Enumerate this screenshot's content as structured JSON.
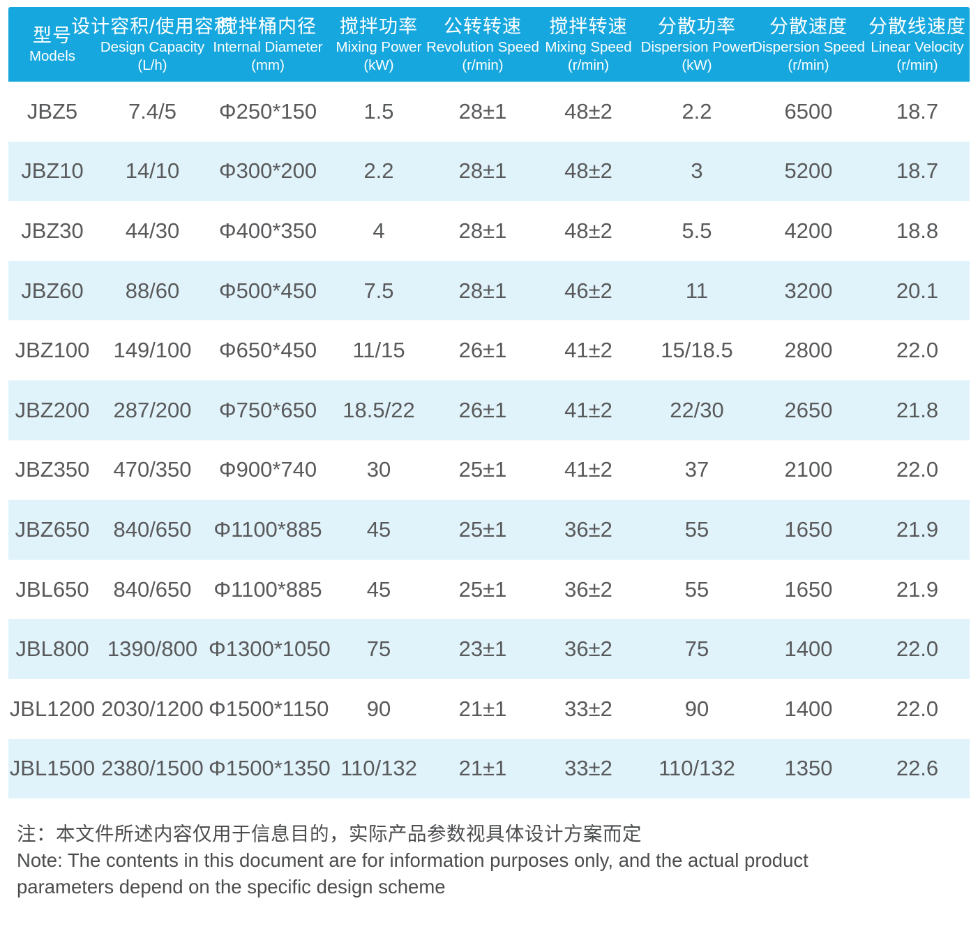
{
  "theme": {
    "header_bg": "#16A7DE",
    "header_text": "#FFFFFF",
    "stripe_bg": "#E1F3FA",
    "row_bg": "#FFFFFF",
    "cell_text": "#58595B",
    "note_text": "#4B4C4E"
  },
  "table": {
    "columns": [
      {
        "cn": "型号",
        "en": "Models",
        "unit": ""
      },
      {
        "cn": "设计容积/使用容积",
        "en": "Design Capacity",
        "unit": "(L/h)"
      },
      {
        "cn": "搅拌桶内径",
        "en": "Internal Diameter",
        "unit": "(mm)"
      },
      {
        "cn": "搅拌功率",
        "en": "Mixing Power",
        "unit": "(kW)"
      },
      {
        "cn": "公转转速",
        "en": "Revolution Speed",
        "unit": "(r/min)"
      },
      {
        "cn": "搅拌转速",
        "en": "Mixing Speed",
        "unit": "(r/min)"
      },
      {
        "cn": "分散功率",
        "en": "Dispersion Power",
        "unit": "(kW)"
      },
      {
        "cn": "分散速度",
        "en": "Dispersion Speed",
        "unit": "(r/min)"
      },
      {
        "cn": "分散线速度",
        "en": "Linear Velocity",
        "unit": "(r/min)"
      }
    ],
    "rows": [
      {
        "cells": [
          "JBZ5",
          "7.4/5",
          "Φ250*150",
          "1.5",
          "28±1",
          "48±2",
          "2.2",
          "6500",
          "18.7"
        ]
      },
      {
        "cells": [
          "JBZ10",
          "14/10",
          "Φ300*200",
          "2.2",
          "28±1",
          "48±2",
          "3",
          "5200",
          "18.7"
        ]
      },
      {
        "cells": [
          "JBZ30",
          "44/30",
          "Φ400*350",
          "4",
          "28±1",
          "48±2",
          "5.5",
          "4200",
          "18.8"
        ]
      },
      {
        "cells": [
          "JBZ60",
          "88/60",
          "Φ500*450",
          "7.5",
          "28±1",
          "46±2",
          "11",
          "3200",
          "20.1"
        ]
      },
      {
        "cells": [
          "JBZ100",
          "149/100",
          "Φ650*450",
          "11/15",
          "26±1",
          "41±2",
          "15/18.5",
          "2800",
          "22.0"
        ]
      },
      {
        "cells": [
          "JBZ200",
          "287/200",
          "Φ750*650",
          "18.5/22",
          "26±1",
          "41±2",
          "22/30",
          "2650",
          "21.8"
        ]
      },
      {
        "cells": [
          "JBZ350",
          "470/350",
          "Φ900*740",
          "30",
          "25±1",
          "41±2",
          "37",
          "2100",
          "22.0"
        ]
      },
      {
        "cells": [
          "JBZ650",
          "840/650",
          "Φ1100*885",
          "45",
          "25±1",
          "36±2",
          "55",
          "1650",
          "21.9"
        ]
      },
      {
        "cells": [
          "JBL650",
          "840/650",
          "Φ1100*885",
          "45",
          "25±1",
          "36±2",
          "55",
          "1650",
          "21.9"
        ]
      },
      {
        "cells": [
          "JBL800",
          "1390/800",
          "Φ1300*1050",
          "75",
          "23±1",
          "36±2",
          "75",
          "1400",
          "22.0"
        ]
      },
      {
        "cells": [
          "JBL1200",
          "2030/1200",
          "Φ1500*1150",
          "90",
          "21±1",
          "33±2",
          "90",
          "1400",
          "22.0"
        ]
      },
      {
        "cells": [
          "JBL1500",
          "2380/1500",
          "Φ1500*1350",
          "110/132",
          "21±1",
          "33±2",
          "110/132",
          "1350",
          "22.6"
        ]
      }
    ]
  },
  "note": {
    "cn": "注：本文件所述内容仅用于信息目的，实际产品参数视具体设计方案而定",
    "en_line1": "Note: The contents in this document are for information purposes only, and the actual product",
    "en_line2": "parameters depend on the specific design scheme"
  }
}
